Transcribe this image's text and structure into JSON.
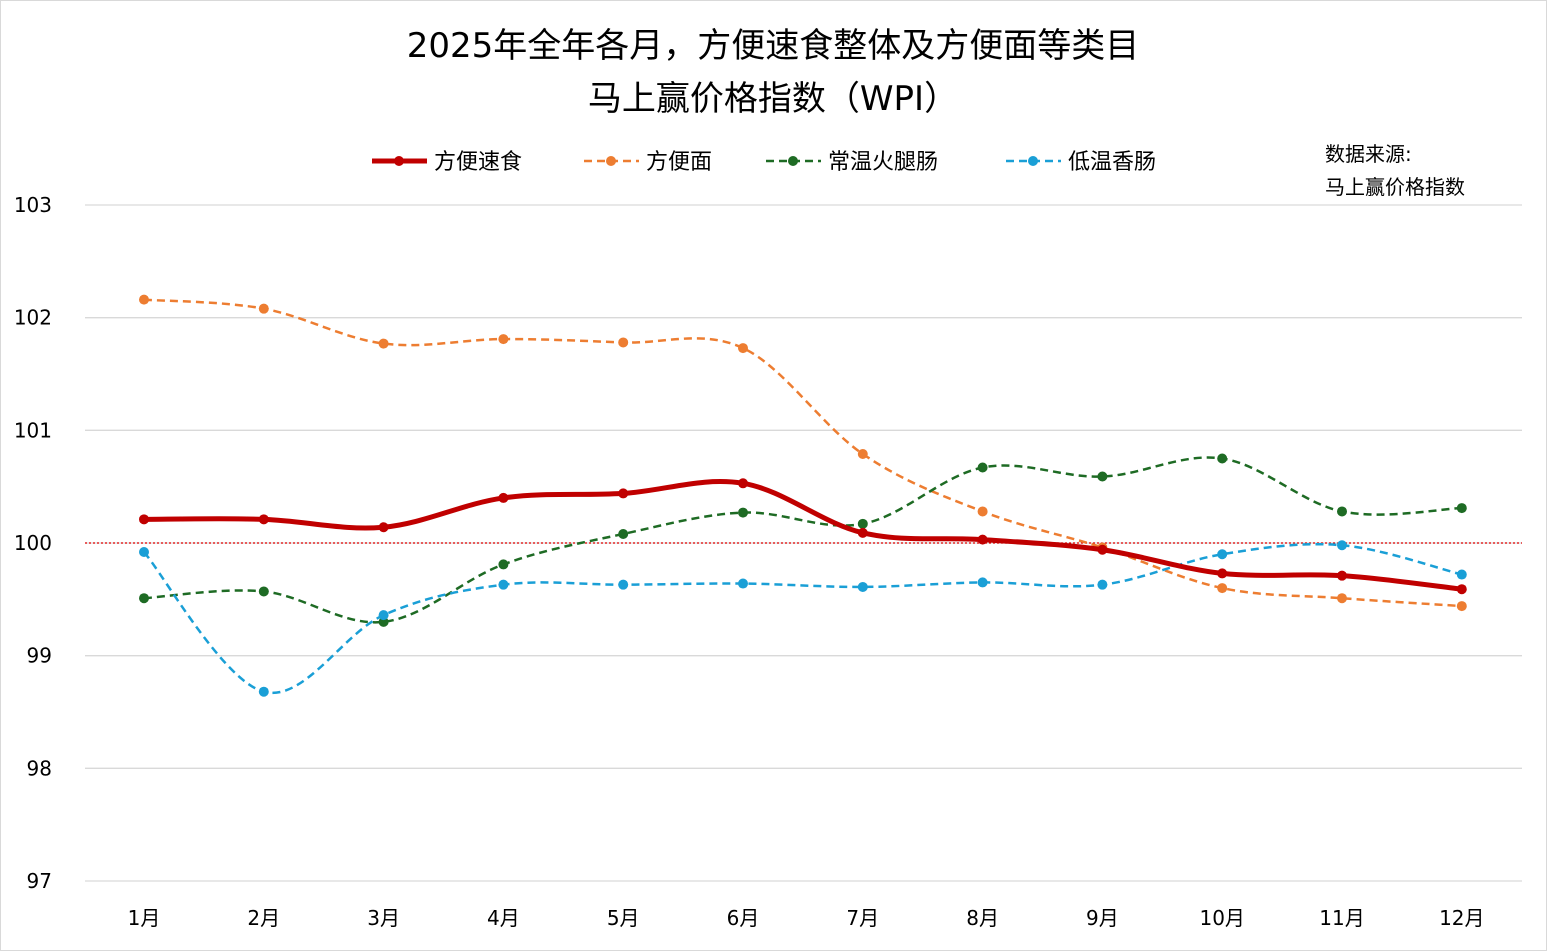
{
  "chart_data": {
    "type": "line",
    "title": "2025年全年各月，方便速食整体及方便面等类目",
    "subtitle": "马上赢价格指数（WPI）",
    "source_label": "数据来源:",
    "source_name": "马上赢价格指数",
    "categories": [
      "1月",
      "2月",
      "3月",
      "4月",
      "5月",
      "6月",
      "7月",
      "8月",
      "9月",
      "10月",
      "11月",
      "12月"
    ],
    "ylim": [
      97,
      103
    ],
    "yticks": [
      "97",
      "98",
      "99",
      "100",
      "101",
      "102",
      "103"
    ],
    "grid": true,
    "reference_line": {
      "value": 100,
      "color": "#e00000",
      "style": "dotted"
    },
    "legend_position": "top",
    "series": [
      {
        "name": "方便速食",
        "color": "#c00000",
        "style": "solid-thick",
        "values": [
          100.21,
          100.21,
          100.14,
          100.4,
          100.44,
          100.53,
          100.09,
          100.03,
          99.94,
          99.73,
          99.71,
          99.59
        ]
      },
      {
        "name": "方便面",
        "color": "#ed7d31",
        "style": "dashed",
        "values": [
          102.16,
          102.08,
          101.77,
          101.81,
          101.78,
          101.73,
          100.79,
          100.28,
          99.96,
          99.6,
          99.51,
          99.44
        ]
      },
      {
        "name": "常温火腿肠",
        "color": "#1e6b24",
        "style": "dashed",
        "values": [
          99.51,
          99.57,
          99.3,
          99.81,
          100.08,
          100.27,
          100.17,
          100.67,
          100.59,
          100.75,
          100.28,
          100.31
        ]
      },
      {
        "name": "低温香肠",
        "color": "#1a9fd6",
        "style": "dashed",
        "values": [
          99.92,
          98.68,
          99.36,
          99.63,
          99.63,
          99.64,
          99.61,
          99.65,
          99.63,
          99.9,
          99.98,
          99.72
        ]
      }
    ]
  }
}
